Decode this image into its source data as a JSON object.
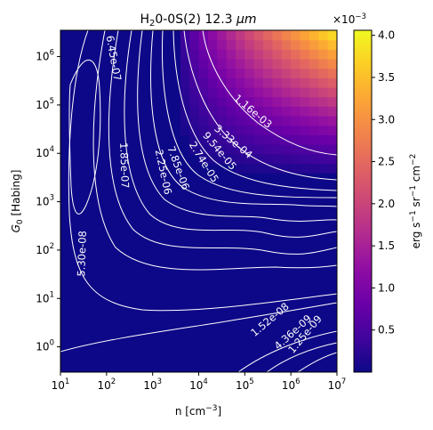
{
  "chart_data": {
    "type": "heatmap",
    "title": "H$_2$0-0S(2) 12.3 μm",
    "title_parts": {
      "base": "H",
      "sub": "2",
      "rest": "0-0S(2) 12.3 ",
      "unit": "μm"
    },
    "xlabel": "n [cm$^{-3}$]",
    "xlabel_parts": {
      "base": "n [cm",
      "sup": "−3",
      "close": "]"
    },
    "ylabel": "G$_0$ [Habing]",
    "ylabel_parts": {
      "base": "G",
      "sub": "0",
      "rest": " [Habing]"
    },
    "x_scale": "log",
    "y_scale": "log",
    "xlim": [
      10,
      10000000
    ],
    "ylim": [
      0.3,
      3500000
    ],
    "x_ticks": [
      {
        "value": 10,
        "base": "10",
        "exp": "1"
      },
      {
        "value": 100,
        "base": "10",
        "exp": "2"
      },
      {
        "value": 1000,
        "base": "10",
        "exp": "3"
      },
      {
        "value": 10000,
        "base": "10",
        "exp": "4"
      },
      {
        "value": 100000,
        "base": "10",
        "exp": "5"
      },
      {
        "value": 1000000,
        "base": "10",
        "exp": "6"
      },
      {
        "value": 10000000,
        "base": "10",
        "exp": "7"
      }
    ],
    "y_ticks": [
      {
        "value": 1,
        "base": "10",
        "exp": "0"
      },
      {
        "value": 10,
        "base": "10",
        "exp": "1"
      },
      {
        "value": 100,
        "base": "10",
        "exp": "2"
      },
      {
        "value": 1000,
        "base": "10",
        "exp": "3"
      },
      {
        "value": 10000,
        "base": "10",
        "exp": "4"
      },
      {
        "value": 100000,
        "base": "10",
        "exp": "5"
      },
      {
        "value": 1000000,
        "base": "10",
        "exp": "6"
      }
    ],
    "colormap": "plasma",
    "colorbar": {
      "label": "erg s$^{-1}$ sr$^{-1}$ cm$^{-2}$",
      "label_parts": [
        "erg s",
        "−1",
        " sr",
        "−1",
        " cm",
        "−2"
      ],
      "range": [
        0.0,
        0.00406
      ],
      "ticks": [
        {
          "value": 0.0005,
          "label": "0.5"
        },
        {
          "value": 0.001,
          "label": "1.0"
        },
        {
          "value": 0.0015,
          "label": "1.5"
        },
        {
          "value": 0.002,
          "label": "2.0"
        },
        {
          "value": 0.0025,
          "label": "2.5"
        },
        {
          "value": 0.003,
          "label": "3.0"
        },
        {
          "value": 0.0035,
          "label": "3.5"
        },
        {
          "value": 0.004,
          "label": "4.0"
        }
      ],
      "multiplier": {
        "base": "×10",
        "exp": "−3"
      }
    },
    "contour_levels": [
      "5.30e-08",
      "1.85e-07",
      "6.45e-07",
      "2.25e-06",
      "7.85e-06",
      "2.74e-05",
      "9.54e-05",
      "3.33e-04",
      "1.16e-03",
      "1.52e-08",
      "4.36e-09",
      "1.25e-09"
    ],
    "intensity_model": {
      "description": "approximate bright region peaking at high n and high G0",
      "peak_value": 0.00406,
      "peak_at": {
        "n": 10000000,
        "G0": 3000000
      }
    }
  }
}
